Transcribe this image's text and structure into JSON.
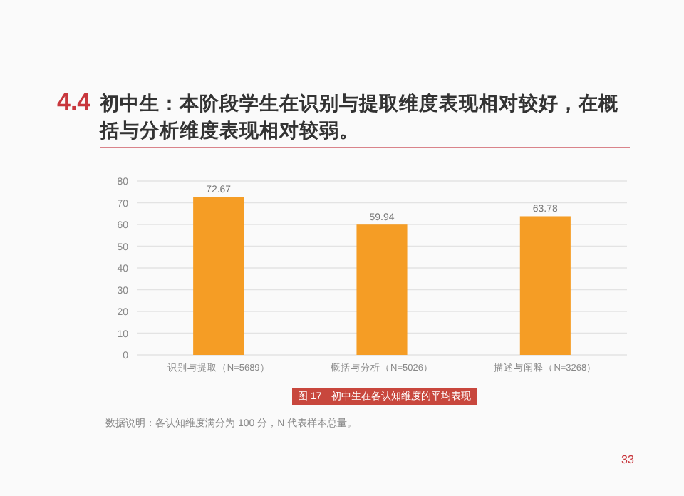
{
  "chart_data": {
    "type": "bar",
    "title": "4.4 初中生：本阶段学生在识别与提取维度表现相对较好，在概括与分析维度表现相对较弱。",
    "categories": [
      "识别与提取（N=5689）",
      "概括与分析（N=5026）",
      "描述与阐释（N=3268）"
    ],
    "values": [
      72.67,
      59.94,
      63.78
    ],
    "color": "#f59d25",
    "ylim": [
      0,
      80
    ],
    "yticks": [
      0,
      10,
      20,
      30,
      40,
      50,
      60,
      70,
      80
    ],
    "grid": "y",
    "data_labels": true,
    "annotations": [
      "图 17　初中生在各认知维度的平均表现",
      "数据说明：各认知维度满分为 100 分，N 代表样本总量。",
      "33"
    ]
  }
}
